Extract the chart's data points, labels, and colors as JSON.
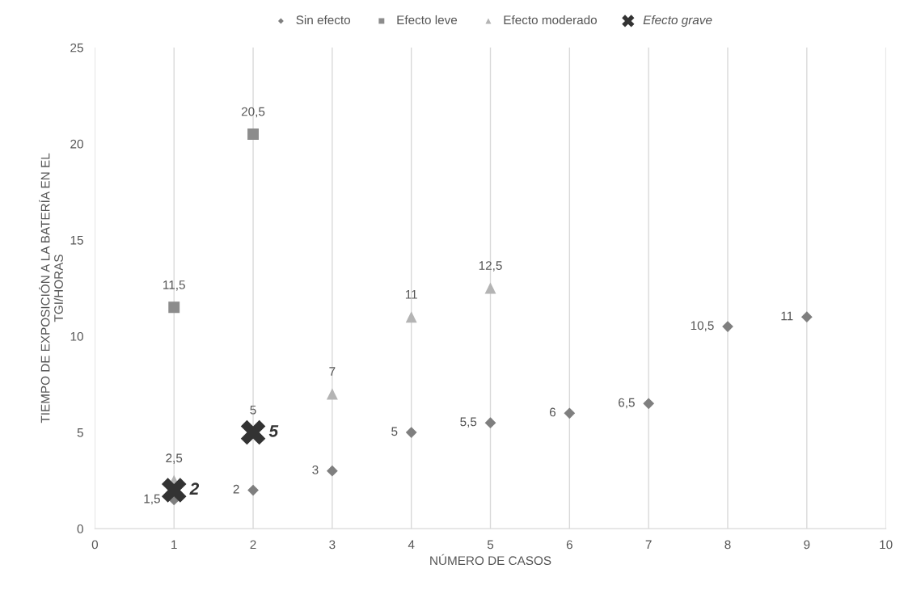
{
  "chart_data": {
    "type": "scatter",
    "xlabel": "NÚMERO DE CASOS",
    "ylabel": "TIEMPO DE EXPOSICIÓN A LA BATERÍA EN EL\nTGI/HORAS",
    "xlim": [
      0,
      10
    ],
    "xticks": [
      0,
      1,
      2,
      3,
      4,
      5,
      6,
      7,
      8,
      9,
      10
    ],
    "ylim": [
      0,
      25
    ],
    "yticks": [
      0,
      5,
      10,
      15,
      20,
      25
    ],
    "grid": "x",
    "legend": "top",
    "annotations": [
      {
        "text": "5",
        "x": 2,
        "y": 5
      }
    ],
    "series": [
      {
        "name": "Sin efecto",
        "color": "#7f7f7f",
        "marker": "diamond",
        "x": [
          1,
          2,
          3,
          4,
          5,
          6,
          7,
          8,
          9
        ],
        "values": [
          1.5,
          2,
          3,
          5,
          5.5,
          6,
          6.5,
          10.5,
          11
        ],
        "value_labels": [
          "1,5",
          "2",
          "3",
          "5",
          "5,5",
          "6",
          "6,5",
          "10,5",
          "11"
        ]
      },
      {
        "name": "Efecto leve",
        "color": "#8c8c8c",
        "marker": "square",
        "x": [
          1,
          2
        ],
        "values": [
          11.5,
          20.5
        ],
        "value_labels": [
          "11,5",
          "20,5"
        ]
      },
      {
        "name": "Efecto moderado",
        "color": "#b4b4b4",
        "marker": "triangle",
        "x": [
          1,
          2,
          3,
          4,
          5
        ],
        "values": [
          2.5,
          null,
          7,
          11,
          12.5
        ],
        "value_labels": [
          "2,5",
          null,
          "7",
          "11",
          "12,5"
        ]
      },
      {
        "name": "Efecto grave",
        "color": "#333333",
        "marker": "cross",
        "x": [
          1,
          2
        ],
        "values": [
          2,
          5
        ],
        "value_labels": [
          "2",
          "5"
        ]
      }
    ]
  }
}
